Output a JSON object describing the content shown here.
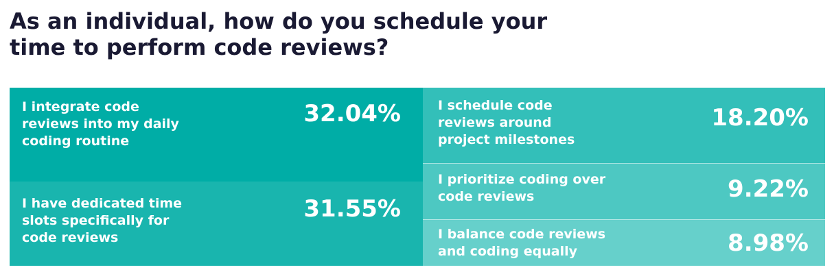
{
  "title_lines": [
    "As an individual, how do you schedule your",
    "time to perform code reviews?"
  ],
  "chart_data": {
    "type": "treemap",
    "title": "As an individual, how do you schedule your time to perform code reviews?",
    "items": [
      {
        "label": "I integrate code reviews into my daily coding routine",
        "label_lines": [
          "I integrate code",
          "reviews into my daily",
          "coding routine"
        ],
        "value": 32.04,
        "display": "32.04%",
        "color": "#00ada6"
      },
      {
        "label": "I have dedicated time slots specifically for code reviews",
        "label_lines": [
          "I have dedicated time",
          "slots specifically for",
          "code reviews"
        ],
        "value": 31.55,
        "display": "31.55%",
        "color": "#19b5ae"
      },
      {
        "label": "I schedule code reviews around project milestones",
        "label_lines": [
          "I schedule code",
          "reviews around",
          "project milestones"
        ],
        "value": 18.2,
        "display": "18.20%",
        "color": "#33bfb9"
      },
      {
        "label": "I prioritize coding over code reviews",
        "label_lines": [
          "I prioritize coding over",
          "code reviews"
        ],
        "value": 9.22,
        "display": "9.22%",
        "color": "#4dc8c2"
      },
      {
        "label": "I balance code reviews and coding equally",
        "label_lines": [
          "I balance code reviews",
          "and coding equally"
        ],
        "value": 8.98,
        "display": "8.98%",
        "color": "#66d0cb"
      }
    ]
  }
}
